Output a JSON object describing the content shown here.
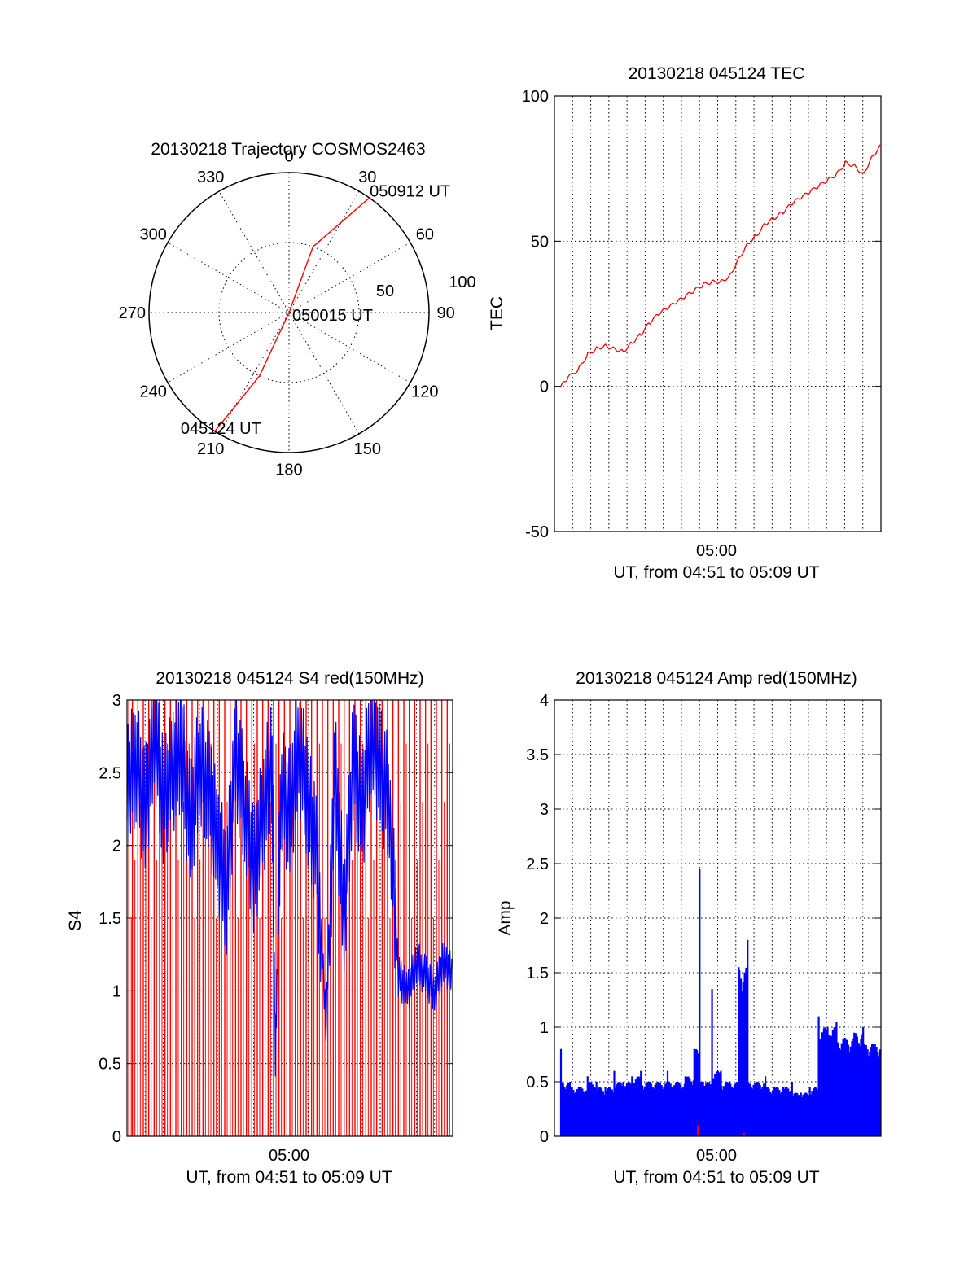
{
  "colors": {
    "red": "#ff0000",
    "blue": "#0000ff",
    "axis": "#000000"
  },
  "chart_data": [
    {
      "type": "scatter",
      "subtype": "polar-trajectory",
      "title": "20130218 Trajectory COSMOS2463",
      "azimuth_labels": [
        "0",
        "30",
        "60",
        "90",
        "120",
        "150",
        "180",
        "210",
        "240",
        "270",
        "300",
        "330"
      ],
      "radial_labels": [
        "50",
        "100"
      ],
      "rlim": [
        0,
        100
      ],
      "track": [
        {
          "az": 35,
          "r": 100
        },
        {
          "az": 20,
          "r": 50
        },
        {
          "az": 0,
          "r": 0
        },
        {
          "az": 205,
          "r": 50
        },
        {
          "az": 212,
          "r": 100
        }
      ],
      "annotations": [
        {
          "text": "050912 UT",
          "az": 34,
          "r": 100
        },
        {
          "text": "050015 UT",
          "az": 0,
          "r": 0
        },
        {
          "text": "045124 UT",
          "az": 212,
          "r": 100
        }
      ]
    },
    {
      "type": "line",
      "title": "20130218 045124 TEC",
      "ylabel": "TEC",
      "xlabel": "UT, from 04:51 to 05:09 UT",
      "x_tick_labels": [
        "05:00"
      ],
      "ylim": [
        -50,
        100
      ],
      "y_ticks": [
        "-50",
        "0",
        "50",
        "100"
      ],
      "grid": true,
      "series": [
        {
          "color": "#ff0000",
          "x_minutes": [
            0,
            0.4,
            1,
            1.5,
            2,
            2.5,
            3,
            3.5,
            4,
            4.5,
            5,
            5.5,
            6,
            6.5,
            7,
            7.5,
            8,
            8.5,
            9,
            9.5,
            10,
            10.5,
            11,
            11.5,
            12,
            12.5,
            13,
            13.5,
            14,
            14.5,
            15,
            15.5,
            16,
            16.5,
            17,
            17.5,
            18
          ],
          "y": [
            0,
            3,
            6,
            11,
            13,
            14,
            13,
            12,
            15,
            18,
            22,
            25,
            27,
            29,
            31,
            33,
            35,
            36,
            36,
            38,
            44,
            49,
            52,
            56,
            58,
            60,
            63,
            65,
            67,
            69,
            71,
            73,
            77,
            76,
            73,
            79,
            83
          ]
        }
      ]
    },
    {
      "type": "line",
      "title": "20130218 045124 S4 red(150MHz)",
      "ylabel": "S4",
      "xlabel": "UT, from 04:51 to 05:09 UT",
      "x_tick_labels": [
        "05:00"
      ],
      "ylim": [
        0,
        3
      ],
      "y_ticks": [
        "0",
        "0.5",
        "1",
        "1.5",
        "2",
        "2.5",
        "3"
      ],
      "grid": true,
      "series": [
        {
          "color": "#ff0000",
          "note_values": "vertical spikes between 0 and 3",
          "x_minutes": [
            0.1,
            0.3,
            0.6,
            0.9,
            1.2,
            1.5,
            1.8,
            2.1,
            2.4,
            2.7,
            3.0,
            3.3,
            3.6,
            3.9,
            4.2,
            4.5,
            4.8,
            5.1,
            5.4,
            5.7,
            6.0,
            6.3,
            6.6,
            6.9,
            7.2,
            7.5,
            7.8,
            8.1,
            8.4,
            8.7,
            9.0,
            9.3,
            9.6,
            9.9,
            10.2,
            10.5,
            10.8,
            11.1,
            11.4,
            11.7,
            12.0,
            12.3,
            12.6,
            12.9,
            13.2,
            13.5,
            13.8,
            14.1,
            14.4,
            14.7,
            15.0,
            15.3,
            15.6,
            15.9,
            16.2,
            16.5,
            16.8,
            17.1,
            17.4,
            17.7
          ],
          "y": [
            3,
            0,
            3,
            0,
            3,
            0,
            3,
            0,
            3,
            0,
            3,
            0,
            3,
            0,
            3,
            0,
            3,
            0,
            3,
            0,
            3,
            0,
            3,
            0,
            3,
            0,
            3,
            0,
            3,
            0,
            3,
            0,
            3,
            0,
            3,
            0,
            3,
            0,
            3,
            0,
            3,
            0,
            3,
            0,
            3,
            0,
            3,
            0,
            3,
            0,
            3,
            0,
            3,
            0,
            3,
            0,
            3,
            0,
            3,
            0
          ]
        },
        {
          "color": "#0000ff",
          "x_minutes": [
            0,
            0.5,
            1,
            1.5,
            2,
            2.5,
            3,
            3.5,
            4,
            4.5,
            5,
            5.5,
            6,
            6.5,
            7,
            7.5,
            8,
            8.2,
            8.5,
            9,
            9.5,
            10,
            10.5,
            11,
            11.5,
            12,
            12.5,
            13,
            13.5,
            14,
            14.5,
            15,
            15.5,
            16,
            16.5,
            17,
            17.5,
            18
          ],
          "y": [
            2.4,
            2.6,
            2.2,
            2.8,
            2.3,
            2.5,
            2.7,
            2.1,
            2.6,
            2.4,
            2.0,
            1.7,
            2.6,
            2.3,
            1.8,
            2.2,
            2.6,
            0.5,
            2.4,
            2.2,
            2.7,
            2.3,
            1.9,
            0.8,
            2.5,
            1.5,
            2.6,
            2.2,
            2.8,
            2.5,
            2.3,
            1.1,
            1.0,
            1.2,
            1.1,
            1.0,
            1.2,
            1.1
          ]
        }
      ]
    },
    {
      "type": "bar",
      "title": "20130218 045124 Amp red(150MHz)",
      "ylabel": "Amp",
      "xlabel": "UT, from 04:51 to 05:09 UT",
      "x_tick_labels": [
        "05:00"
      ],
      "ylim": [
        0,
        4
      ],
      "y_ticks": [
        "0",
        "0.5",
        "1",
        "1.5",
        "2",
        "2.5",
        "3",
        "3.5",
        "4"
      ],
      "grid": true,
      "series": [
        {
          "color": "#0000ff",
          "x_minutes": [
            0,
            0.5,
            1,
            1.5,
            2,
            2.5,
            3,
            3.5,
            4,
            4.5,
            5,
            5.5,
            6,
            6.5,
            7,
            7.5,
            7.8,
            8,
            8.5,
            9,
            9.5,
            10,
            10.5,
            11,
            11.5,
            12,
            12.5,
            13,
            13.5,
            14,
            14.5,
            15,
            15.5,
            16,
            16.5,
            17,
            17.5,
            18
          ],
          "y": [
            0.8,
            0.5,
            0.45,
            0.55,
            0.5,
            0.45,
            0.6,
            0.5,
            0.55,
            0.6,
            0.5,
            0.5,
            0.6,
            0.5,
            0.55,
            0.8,
            2.45,
            0.5,
            1.35,
            0.6,
            0.5,
            1.55,
            1.8,
            0.5,
            0.55,
            0.45,
            0.45,
            0.5,
            0.4,
            0.45,
            1.1,
            1.0,
            1.05,
            0.9,
            0.95,
            1.0,
            0.85,
            0.85
          ]
        },
        {
          "color": "#ff0000",
          "x_minutes": [
            7.7,
            10.3
          ],
          "y": [
            0.1,
            0.03
          ]
        }
      ]
    }
  ]
}
